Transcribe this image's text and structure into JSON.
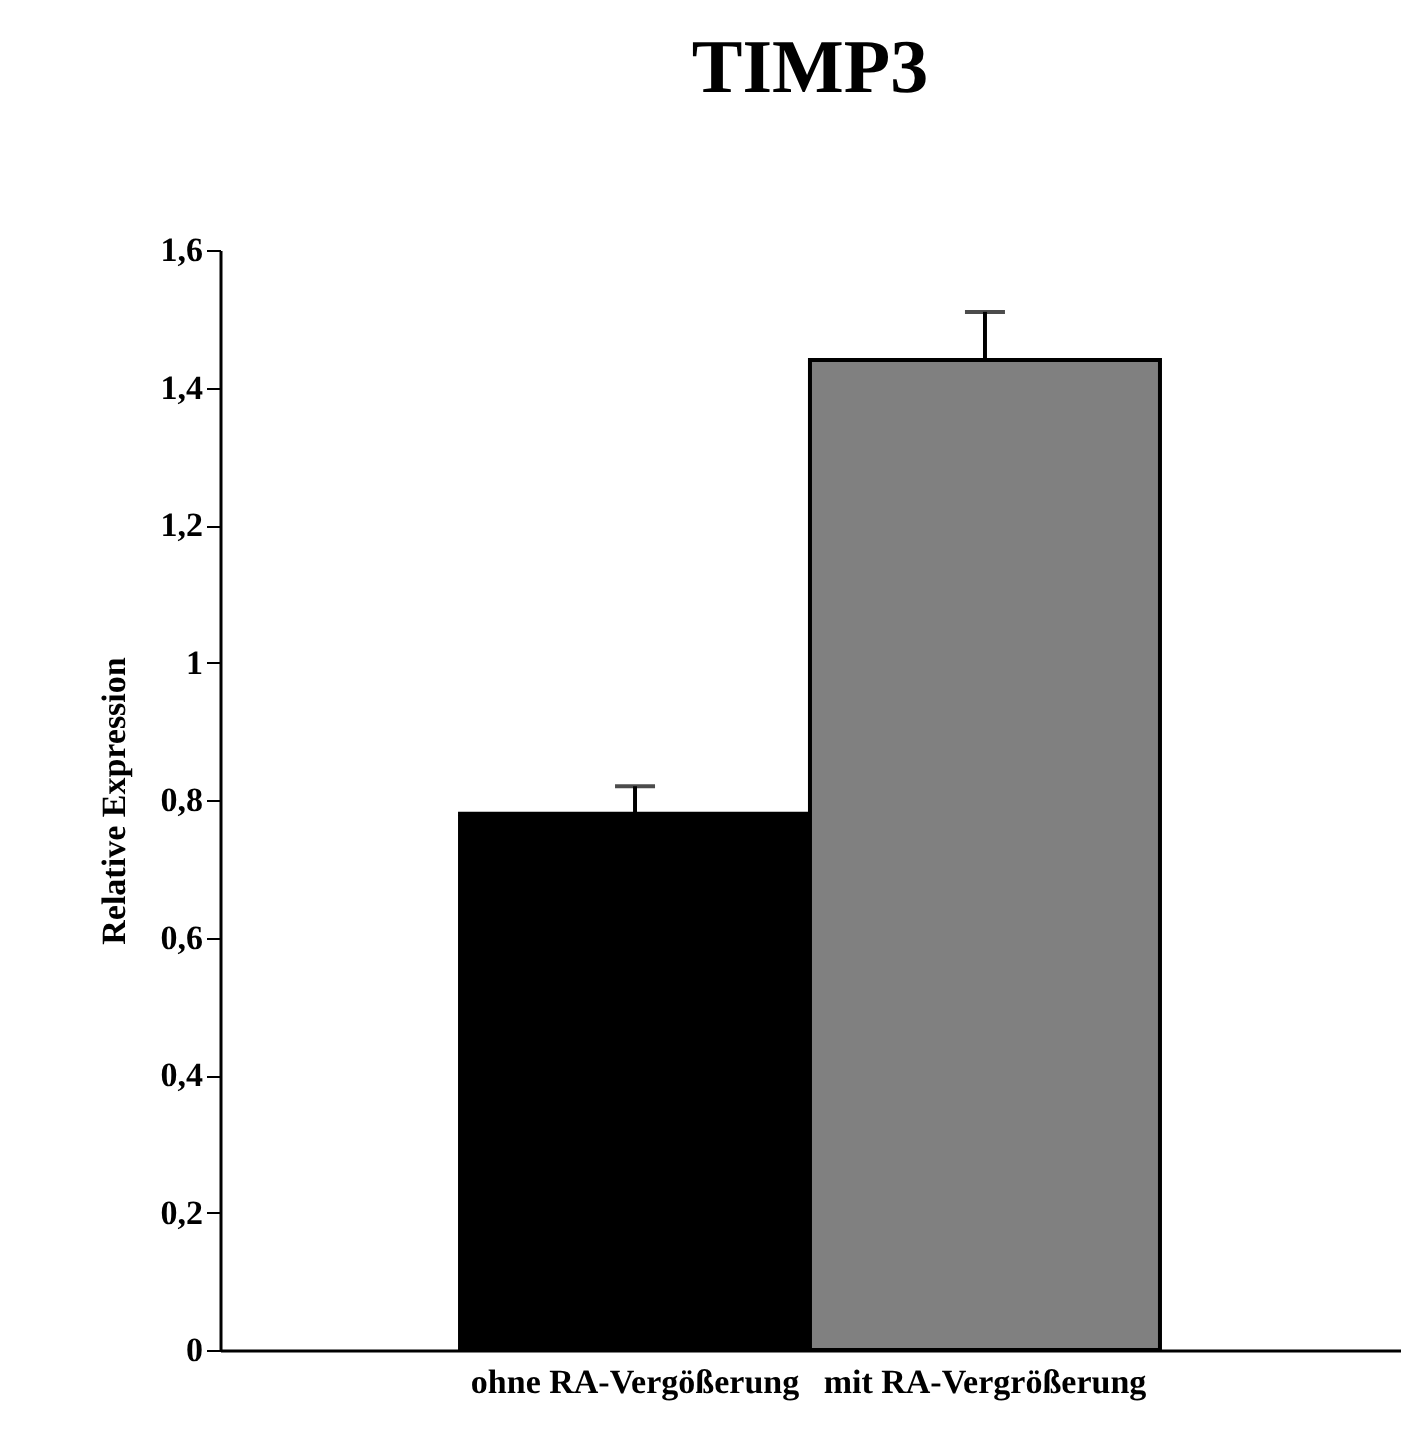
{
  "chart_data": {
    "type": "bar",
    "title": "TIMP3",
    "ylabel": "Relative Expression",
    "categories": [
      "ohne RA-Vergößerung",
      "mit RA-Vergrößerung"
    ],
    "values": [
      0.78,
      1.44
    ],
    "colors": [
      "#000000",
      "#808080"
    ],
    "errors": [
      [
        0.78,
        0.82
      ],
      [
        1.44,
        1.51
      ]
    ],
    "ylim": [
      0,
      1.6
    ],
    "yticks": [
      0,
      {
        "value": 0.2,
        "label": "0,2"
      },
      {
        "value": 0.4,
        "label": "0,4"
      },
      {
        "value": 0.6,
        "label": "0,6"
      },
      {
        "value": 0.8,
        "label": "0,8"
      },
      1,
      {
        "value": 1.2,
        "label": "1,2"
      },
      {
        "value": 1.4,
        "label": "1,4"
      },
      {
        "value": 1.6,
        "label": "1,6"
      }
    ],
    "grid": false
  }
}
